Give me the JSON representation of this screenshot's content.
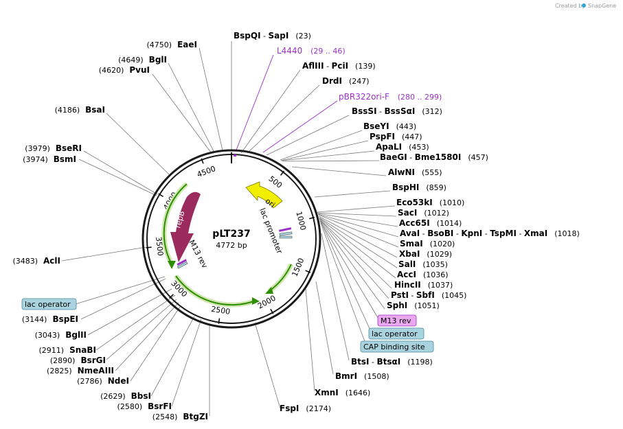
{
  "plasmid": {
    "name": "pLT237",
    "length_label": "4772 bp"
  },
  "watermark": {
    "created_by": "Created by",
    "brand": "SnapGene"
  },
  "ring_ticks": [
    "500",
    "1000",
    "1500",
    "2000",
    "2500",
    "3000",
    "3500",
    "4000",
    "4500"
  ],
  "features": {
    "ori": "ori",
    "lac_promoter": "lac promoter",
    "repB": "repB",
    "m13_rev": "M13 rev"
  },
  "boxed": [
    {
      "text": "M13 rev",
      "style": "primer"
    },
    {
      "text": "lac operator",
      "style": "operator"
    },
    {
      "text": "CAP binding site",
      "style": "operator"
    },
    {
      "text": "lac operator",
      "style": "operator"
    }
  ],
  "primers": [
    {
      "name": "L4440",
      "pos": "(29 .. 46)"
    },
    {
      "name": "pBR322ori-F",
      "pos": "(280 .. 299)"
    }
  ],
  "sites_right": [
    {
      "parts": [
        "BspQI",
        " - ",
        "SapI"
      ],
      "pos": "(23)"
    },
    {
      "parts": [
        "AflIII",
        " - ",
        "PciI"
      ],
      "pos": "(139)"
    },
    {
      "parts": [
        "DrdI"
      ],
      "pos": "(247)"
    },
    {
      "parts": [
        "BssSI",
        " - ",
        "BssSαI"
      ],
      "pos": "(312)"
    },
    {
      "parts": [
        "BseYI"
      ],
      "pos": "(443)"
    },
    {
      "parts": [
        "PspFI"
      ],
      "pos": "(447)"
    },
    {
      "parts": [
        "ApaLI"
      ],
      "pos": "(453)"
    },
    {
      "parts": [
        "BaeGI",
        " - ",
        "Bme1580I"
      ],
      "pos": "(457)"
    },
    {
      "parts": [
        "AlwNI"
      ],
      "pos": "(555)"
    },
    {
      "parts": [
        "BspHI"
      ],
      "pos": "(859)"
    },
    {
      "parts": [
        "Eco53kI"
      ],
      "pos": "(1010)"
    },
    {
      "parts": [
        "SacI"
      ],
      "pos": "(1012)"
    },
    {
      "parts": [
        "Acc65I"
      ],
      "pos": "(1014)"
    },
    {
      "parts": [
        "AvaI",
        " - ",
        "BsoBI",
        " - ",
        "KpnI",
        " - ",
        "TspMI",
        " - ",
        "XmaI"
      ],
      "pos": "(1018)"
    },
    {
      "parts": [
        "SmaI"
      ],
      "pos": "(1020)"
    },
    {
      "parts": [
        "XbaI"
      ],
      "pos": "(1029)"
    },
    {
      "parts": [
        "SalI"
      ],
      "pos": "(1035)"
    },
    {
      "parts": [
        "AccI"
      ],
      "pos": "(1036)"
    },
    {
      "parts": [
        "HincII"
      ],
      "pos": "(1037)"
    },
    {
      "parts": [
        "PstI",
        " - ",
        "SbfI"
      ],
      "pos": "(1045)"
    },
    {
      "parts": [
        "SphI"
      ],
      "pos": "(1051)"
    },
    {
      "parts": [
        "BtsI",
        " - ",
        "BtsαI"
      ],
      "pos": "(1198)"
    },
    {
      "parts": [
        "BmrI"
      ],
      "pos": "(1508)"
    },
    {
      "parts": [
        "XmnI"
      ],
      "pos": "(1646)"
    },
    {
      "parts": [
        "FspI"
      ],
      "pos": "(2174)"
    }
  ],
  "sites_left": [
    {
      "name": "EaeI",
      "pos": "(4750)"
    },
    {
      "name": "BglI",
      "pos": "(4649)"
    },
    {
      "name": "PvuI",
      "pos": "(4620)"
    },
    {
      "name": "BsaI",
      "pos": "(4186)"
    },
    {
      "name": "BseRI",
      "pos": "(3979)"
    },
    {
      "name": "BsmI",
      "pos": "(3974)"
    },
    {
      "name": "AclI",
      "pos": "(3483)"
    },
    {
      "name": "BspEI",
      "pos": "(3144)"
    },
    {
      "name": "BglII",
      "pos": "(3043)"
    },
    {
      "name": "SnaBI",
      "pos": "(2911)"
    },
    {
      "name": "BsrGI",
      "pos": "(2890)"
    },
    {
      "name": "NmeAIII",
      "pos": "(2825)"
    },
    {
      "name": "NdeI",
      "pos": "(2786)"
    },
    {
      "name": "BbsI",
      "pos": "(2629)"
    },
    {
      "name": "BsrFI",
      "pos": "(2580)"
    },
    {
      "name": "BtgZI",
      "pos": "(2548)"
    }
  ],
  "colors": {
    "ring": "#1a1a1a",
    "primer": "#9b30c8",
    "ori": "#f2ee00",
    "repB": "#9a2b5c",
    "orf_arrow": "#2d8f00",
    "orf_glow": "#cfe6b0",
    "primer_box": "#e9a8ef",
    "operator_box": "#a9d3de"
  }
}
